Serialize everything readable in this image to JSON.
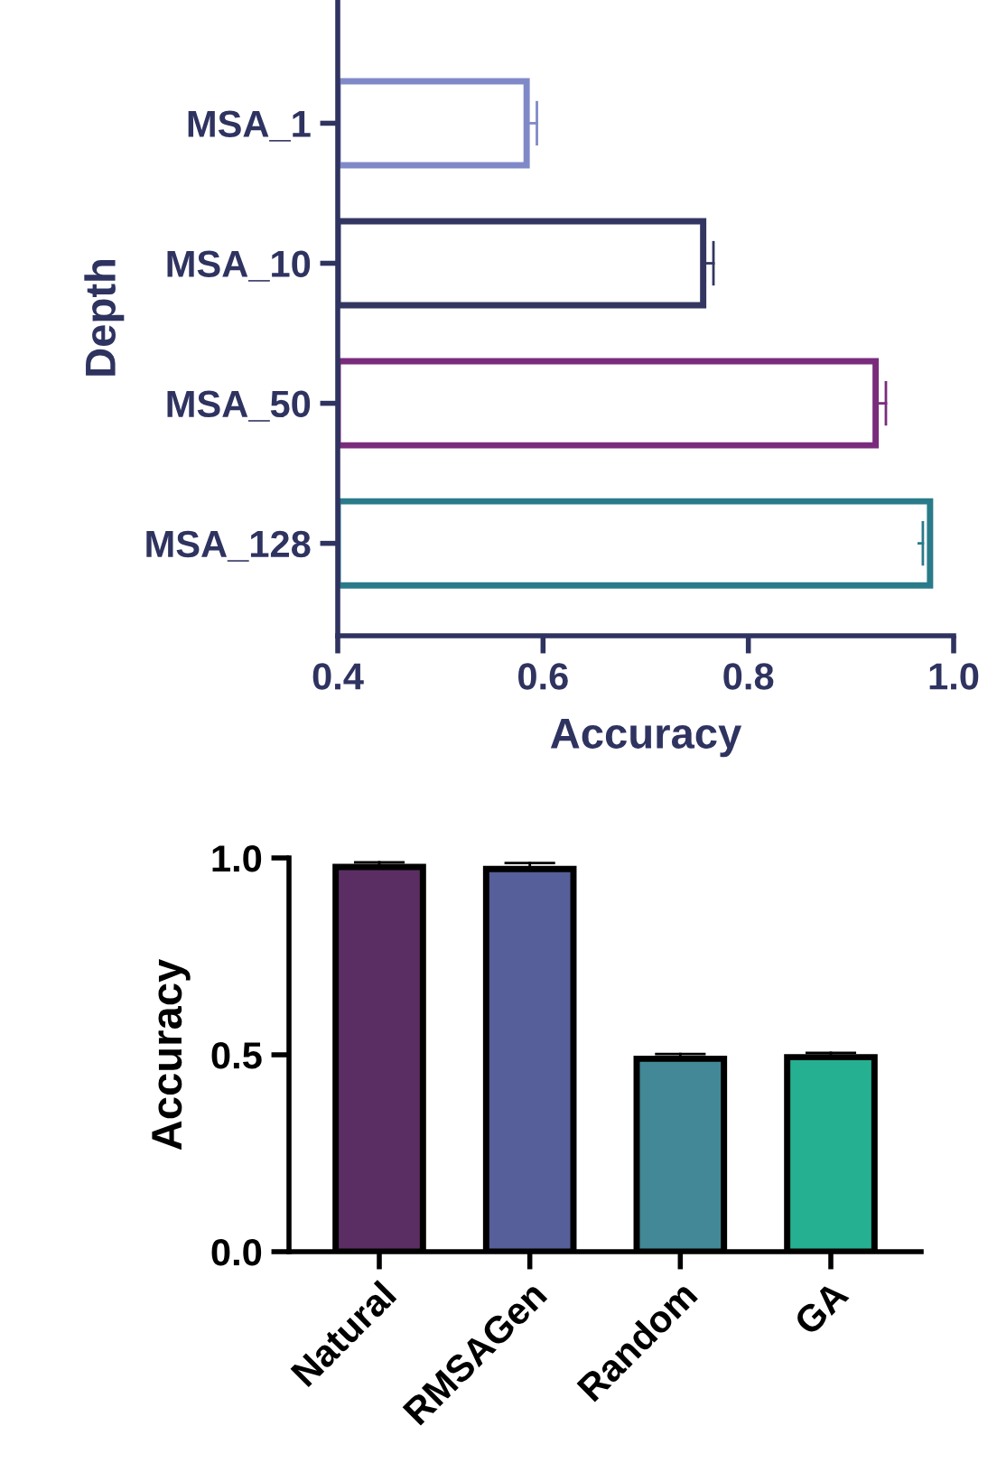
{
  "chart_data": [
    {
      "type": "bar",
      "orientation": "horizontal",
      "xlabel": "Accuracy",
      "ylabel": "Depth",
      "categories": [
        "MSA_1",
        "MSA_10",
        "MSA_50",
        "MSA_128"
      ],
      "values": [
        0.584,
        0.756,
        0.924,
        0.977
      ],
      "errors": [
        [
          0.584,
          0.594
        ],
        [
          0.756,
          0.766
        ],
        [
          0.924,
          0.934
        ],
        [
          0.966,
          0.97
        ]
      ],
      "colors": [
        "#8089c8",
        "#333660",
        "#7a2c7c",
        "#2a7b8a"
      ],
      "xlim": [
        0.4,
        1.0
      ],
      "xticks": [
        0.4,
        0.6,
        0.8,
        {
          "value": 1,
          "label": "1.0"
        }
      ],
      "grid": false,
      "legend": false
    },
    {
      "type": "bar",
      "ylabel": "Accuracy",
      "categories": [
        "Natural",
        "RMSAGen",
        "Random",
        "GA"
      ],
      "values": [
        0.977,
        0.972,
        0.49,
        0.494
      ],
      "errors": [
        [
          0.977,
          0.989
        ],
        [
          0.972,
          0.987
        ],
        [
          0.49,
          0.502
        ],
        [
          0.494,
          0.505
        ]
      ],
      "colors": [
        "#5a2e63",
        "#565f99",
        "#428896",
        "#26b092"
      ],
      "ylim": [
        0,
        1.0
      ],
      "yticks": [
        {
          "value": 0,
          "label": "0.0"
        },
        0.5,
        {
          "value": 1,
          "label": "1.0"
        }
      ],
      "grid": false,
      "legend": false
    }
  ]
}
